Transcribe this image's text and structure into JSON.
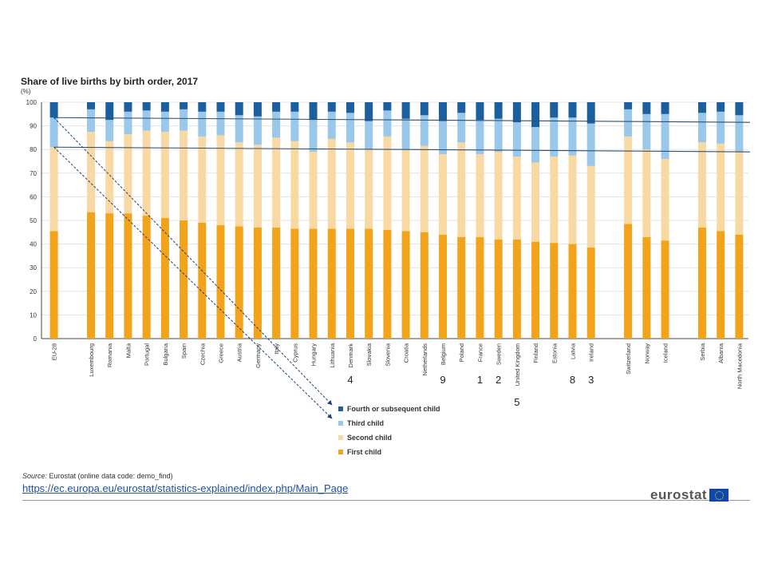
{
  "chart_data": {
    "type": "bar",
    "stacked": true,
    "title": "Share of live births by birth order, 2017",
    "ylabel": "(%)",
    "ylim": [
      0,
      100
    ],
    "yticks": [
      0,
      10,
      20,
      30,
      40,
      50,
      60,
      70,
      80,
      90,
      100
    ],
    "grid": true,
    "legend_position": "bottom",
    "categories": [
      "EU-28",
      "Luxembourg",
      "Romania",
      "Malta",
      "Portugal",
      "Bulgaria",
      "Spain",
      "Czechia",
      "Greece",
      "Austria",
      "Germany",
      "Italy",
      "Cyprus",
      "Hungary",
      "Lithuania",
      "Denmark",
      "Slovakia",
      "Slovenia",
      "Croatia",
      "Netherlands",
      "Belgium",
      "Poland",
      "France",
      "Sweden",
      "United Kingdom",
      "Finland",
      "Estonia",
      "Latvia",
      "Ireland",
      "Switzerland",
      "Norway",
      "Iceland",
      "Serbia",
      "Albania",
      "North Macedonia"
    ],
    "series": [
      {
        "name": "First child",
        "color": "#f2a31a",
        "values": [
          45.5,
          53.5,
          53,
          53,
          52,
          51,
          50,
          49,
          48,
          47.5,
          47,
          47,
          46.5,
          46.5,
          46.5,
          46.5,
          46.5,
          46,
          45.5,
          45,
          44,
          43,
          43,
          42,
          42,
          41,
          40.5,
          40,
          38.5,
          48.5,
          43,
          41.5,
          47,
          45.5,
          44
        ]
      },
      {
        "name": "Second child",
        "color": "#f9d9a3",
        "values": [
          35.5,
          34,
          30.5,
          33.5,
          36,
          36.5,
          38,
          36.5,
          38,
          35.5,
          35,
          38,
          37,
          32.5,
          38,
          36.5,
          33.5,
          39.5,
          34.5,
          36.5,
          34,
          40,
          35,
          37,
          35,
          33.5,
          36.5,
          37.5,
          34.5,
          37,
          37,
          34.5,
          36,
          37,
          35
        ]
      },
      {
        "name": "Third child",
        "color": "#9ac8ea",
        "values": [
          12.5,
          9.5,
          9,
          9.5,
          8.5,
          8.5,
          9,
          10.5,
          10,
          11.5,
          12,
          11,
          12.5,
          13.5,
          11.5,
          12.5,
          12,
          11,
          13,
          13,
          14,
          12.5,
          14.5,
          14,
          14.5,
          15,
          16.5,
          16,
          18,
          11.5,
          15,
          19,
          12.5,
          13.5,
          15.5
        ]
      },
      {
        "name": "Fourth or subsequent child",
        "color": "#1b5f9f",
        "values": [
          6.5,
          3,
          7.5,
          4,
          3.5,
          4,
          3,
          4,
          4,
          5.5,
          6,
          4,
          4,
          7.5,
          4,
          4.5,
          8,
          3.5,
          7,
          5.5,
          8,
          4.5,
          7.5,
          7,
          8.5,
          10.5,
          6.5,
          6.5,
          9,
          3,
          5,
          5,
          4.5,
          4,
          5.5
        ]
      }
    ],
    "annotations": [
      {
        "text": "4",
        "category": "Denmark",
        "row": 1
      },
      {
        "text": "9",
        "category": "Belgium",
        "row": 1
      },
      {
        "text": "1",
        "category": "France",
        "row": 1
      },
      {
        "text": "2",
        "category": "Sweden",
        "row": 1
      },
      {
        "text": "8",
        "category": "Latvia",
        "row": 1
      },
      {
        "text": "3",
        "category": "Ireland",
        "row": 1
      },
      {
        "text": "5",
        "category": "United Kingdom",
        "row": 2
      }
    ],
    "reference_lines": [
      {
        "from_value": 93.5,
        "to_value": 91.5
      },
      {
        "from_value": 81,
        "to_value": 79
      }
    ]
  },
  "legend": [
    {
      "label": "Fourth or subsequent child",
      "color": "#1b5f9f"
    },
    {
      "label": "Third child",
      "color": "#9ac8ea"
    },
    {
      "label": "Second child",
      "color": "#f9d9a3"
    },
    {
      "label": "First child",
      "color": "#f2a31a"
    }
  ],
  "source": {
    "prefix": "Source:",
    "text": " Eurostat (online data code: demo_find)"
  },
  "link": "https://ec.europa.eu/eurostat/statistics-explained/index.php/Main_Page",
  "logo": "eurostat"
}
